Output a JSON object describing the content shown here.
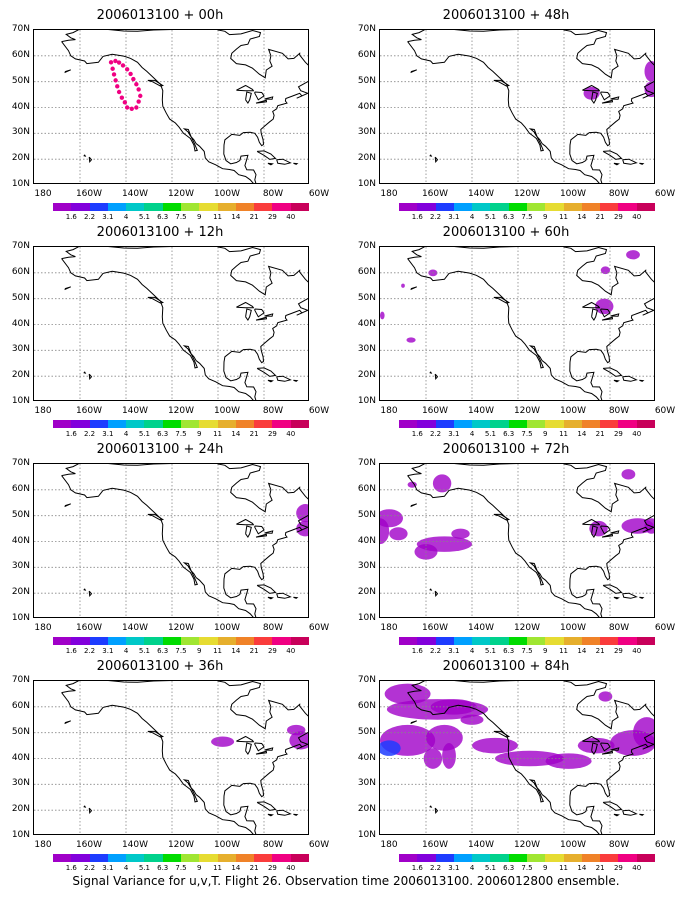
{
  "caption": "Signal Variance for u,v,T. Flight 26. Observation time 2006013100. 2006012800 ensemble.",
  "y_ticks": [
    "70N",
    "60N",
    "50N",
    "40N",
    "30N",
    "20N",
    "10N"
  ],
  "x_ticks": [
    "180",
    "160W",
    "140W",
    "120W",
    "100W",
    "80W",
    "60W"
  ],
  "colorbar_labels": [
    "1.6",
    "2.2",
    "3.1",
    "4",
    "5.1",
    "6.3",
    "7.5",
    "9",
    "11",
    "14",
    "21",
    "29",
    "40"
  ],
  "colorbar_colors": [
    "#a000c8",
    "#8200dc",
    "#1e3cff",
    "#00a0ff",
    "#00c8c8",
    "#00d28c",
    "#00dc00",
    "#a0e632",
    "#e6dc32",
    "#e6af2d",
    "#f08228",
    "#fa3c3c",
    "#f00082"
  ],
  "panels": [
    {
      "title": "2006013100 + 00h"
    },
    {
      "title": "2006013100 + 12h"
    },
    {
      "title": "2006013100 + 24h"
    },
    {
      "title": "2006013100 + 36h"
    },
    {
      "title": "2006013100 + 48h"
    },
    {
      "title": "2006013100 + 60h"
    },
    {
      "title": "2006013100 + 72h"
    },
    {
      "title": "2006013100 + 84h"
    }
  ],
  "variance_color": "#a000c8",
  "variance_core_color": "#1e3cff",
  "flight_track_color": "#f00082"
}
